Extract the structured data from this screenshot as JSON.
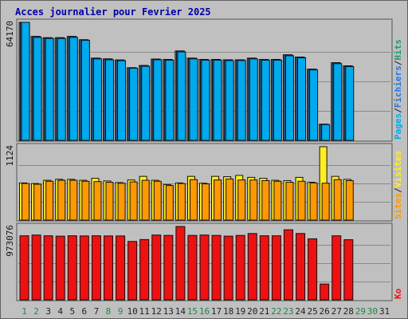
{
  "title": "Acces journalier pour Fevrier 2025",
  "colors": {
    "background": "#c0c0c0",
    "panel": "#c0c0c0",
    "grid": "#8a8a8a",
    "pages": "#00aaee",
    "fichiers": "#2277dd",
    "hits": "#33bbff",
    "visites": "#ffee22",
    "sites": "#ff9900",
    "ko": "#ee1111",
    "weekend_label": "#228844",
    "weekday_label": "#222222",
    "title": "#0000aa"
  },
  "chart_data": {
    "type": "bar",
    "title": "Acces journalier pour Fevrier 2025",
    "categories": [
      "1",
      "2",
      "3",
      "4",
      "5",
      "6",
      "7",
      "8",
      "9",
      "10",
      "11",
      "12",
      "13",
      "14",
      "15",
      "16",
      "17",
      "18",
      "19",
      "20",
      "21",
      "22",
      "23",
      "24",
      "25",
      "26",
      "27",
      "28",
      "29",
      "30",
      "31"
    ],
    "weekend_days": [
      "1",
      "2",
      "8",
      "9",
      "15",
      "16",
      "22",
      "23",
      "29",
      "30"
    ],
    "panels": [
      {
        "name": "hits",
        "ymax_label": "64170",
        "ylim": [
          0,
          64170
        ],
        "legend": [
          {
            "text": "Pages",
            "color": "#00aaee"
          },
          {
            "text": "/",
            "color": "#222222"
          },
          {
            "text": "Fichiers",
            "color": "#2277dd"
          },
          {
            "text": "/",
            "color": "#222222"
          },
          {
            "text": "Hits",
            "color": "#229977"
          }
        ],
        "series": [
          {
            "name": "Hits",
            "color": "#33bbff",
            "values": [
              64170,
              56500,
              55800,
              55800,
              56500,
              54700,
              44700,
              44300,
              43700,
              39500,
              40700,
              44200,
              44000,
              48600,
              44700,
              44000,
              44000,
              43800,
              43800,
              44700,
              44000,
              44000,
              46500,
              45300,
              38700,
              8800,
              42200,
              40500,
              null,
              null,
              null
            ]
          },
          {
            "name": "Fichiers",
            "color": "#2277dd",
            "values": [
              64170,
              56500,
              55800,
              55800,
              56500,
              54700,
              44700,
              44300,
              43700,
              39500,
              40700,
              44200,
              44000,
              48600,
              44700,
              44000,
              44000,
              43800,
              43800,
              44700,
              44000,
              44000,
              46500,
              45300,
              38700,
              8800,
              42200,
              40500,
              null,
              null,
              null
            ]
          },
          {
            "name": "Pages",
            "color": "#00aaee",
            "values": [
              64170,
              56000,
              55400,
              55400,
              56000,
              54400,
              44300,
              43800,
              43300,
              39200,
              40300,
              43800,
              43600,
              48100,
              44300,
              43600,
              43600,
              43400,
              43400,
              44300,
              43600,
              43600,
              46000,
              44900,
              38300,
              8600,
              41700,
              40100,
              null,
              null,
              null
            ]
          }
        ]
      },
      {
        "name": "visits",
        "ymax_label": "1124",
        "ylim": [
          0,
          1124
        ],
        "legend": [
          {
            "text": "Sites",
            "color": "#ff9900"
          },
          {
            "text": "/",
            "color": "#222222"
          },
          {
            "text": "Visites",
            "color": "#ffee22"
          }
        ],
        "series": [
          {
            "name": "Visites",
            "color": "#ffee22",
            "values": [
              570,
              560,
              610,
              625,
              625,
              610,
              640,
              600,
              575,
              615,
              670,
              610,
              545,
              570,
              670,
              565,
              670,
              665,
              685,
              655,
              640,
              610,
              605,
              655,
              580,
              1124,
              670,
              625,
              null,
              null,
              null
            ]
          },
          {
            "name": "Sites",
            "color": "#ff9900",
            "values": [
              560,
              550,
              595,
              610,
              610,
              595,
              590,
              580,
              565,
              585,
              610,
              595,
              530,
              560,
              620,
              555,
              615,
              630,
              615,
              615,
              605,
              595,
              580,
              595,
              570,
              565,
              620,
              605,
              null,
              null,
              null
            ]
          }
        ]
      },
      {
        "name": "kb",
        "ymax_label": "973076",
        "ylim": [
          0,
          973076
        ],
        "legend": [
          {
            "text": "Ko",
            "color": "#ee1111"
          }
        ],
        "series": [
          {
            "name": "Ko",
            "color": "#ee1111",
            "values": [
              850000,
              860000,
              850000,
              845000,
              850000,
              848000,
              850000,
              848000,
              848000,
              775000,
              800000,
              860000,
              855000,
              973076,
              855000,
              860000,
              855000,
              845000,
              855000,
              880000,
              850000,
              850000,
              930000,
              880000,
              810000,
              210000,
              850000,
              798000,
              null,
              null,
              null
            ]
          }
        ]
      }
    ],
    "grid": true
  }
}
